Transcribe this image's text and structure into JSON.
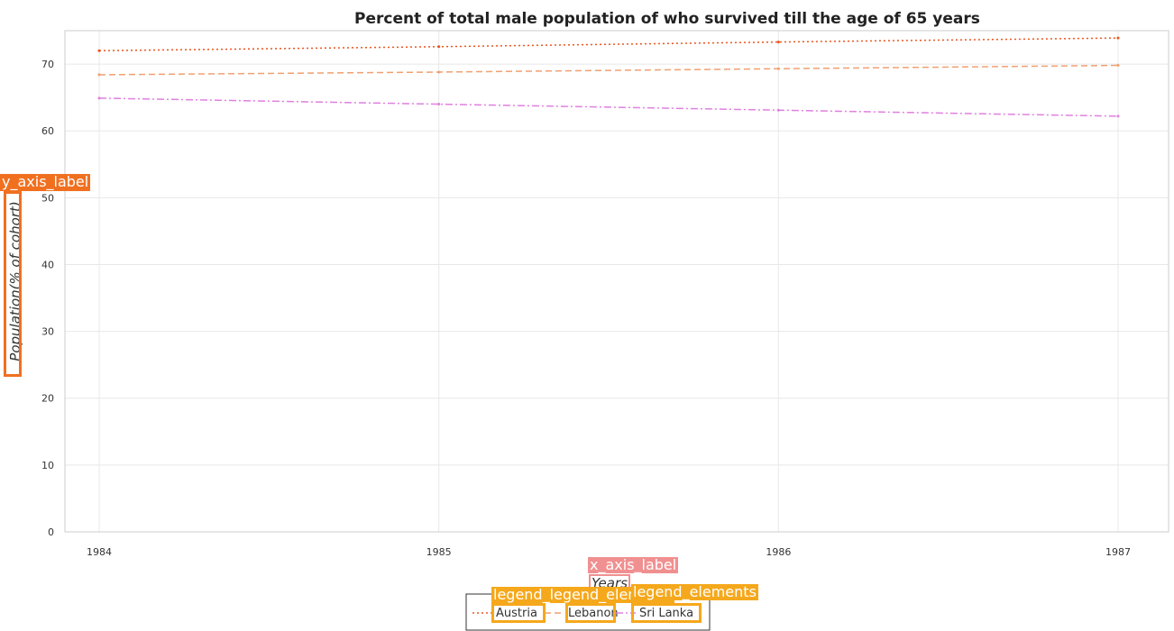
{
  "chart_data": {
    "type": "line",
    "title": "Percent of total male population of who survived till the age of 65 years",
    "xlabel": "Years",
    "ylabel": "Population(% of cohort)",
    "categories": [
      "1984",
      "1985",
      "1986",
      "1987"
    ],
    "ylim": [
      0,
      75
    ],
    "yticks": [
      "0",
      "10",
      "20",
      "30",
      "40",
      "50",
      "60",
      "70"
    ],
    "series": [
      {
        "name": "Austria",
        "values": [
          72.0,
          72.6,
          73.3,
          73.9
        ],
        "color": "#e8541e",
        "dash": "2,3"
      },
      {
        "name": "Lebanon",
        "values": [
          68.4,
          68.8,
          69.3,
          69.8
        ],
        "color": "#f0a070",
        "dash": "7,4"
      },
      {
        "name": "Sri Lanka",
        "values": [
          64.9,
          64.0,
          63.1,
          62.2
        ],
        "color": "#e080e0",
        "dash": "8,3,2,3"
      }
    ],
    "legend_position": "bottom-center",
    "grid": true
  },
  "overlays": {
    "y_axis_label": "y_axis_label",
    "x_axis_label": "x_axis_label",
    "legend_label_1": "legend_legend_elements",
    "legend_label_2": "legend_elements"
  },
  "colors": {
    "overlay_orange": "#f07020",
    "overlay_salmon": "#f09090",
    "overlay_gold": "#f5a81c"
  }
}
